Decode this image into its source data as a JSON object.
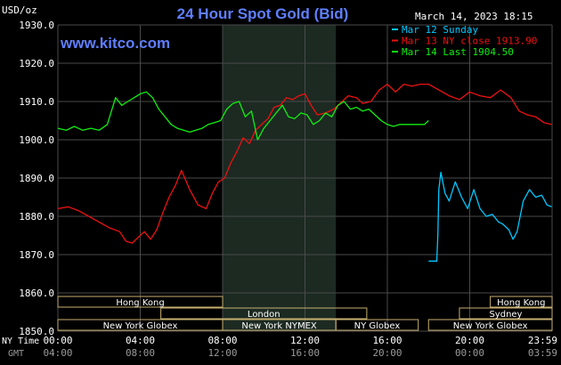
{
  "chart_data": {
    "type": "line",
    "title": "24 Hour Spot Gold (Bid)",
    "ylabel": "USD/oz",
    "site": "www.kitco.com",
    "timestamp": "March 14, 2023 18:15",
    "ylim": [
      1850,
      1930
    ],
    "y_ticks": [
      "1930.0",
      "1920.0",
      "1910.0",
      "1900.0",
      "1890.0",
      "1880.0",
      "1870.0",
      "1860.0",
      "1850.0"
    ],
    "x_ticks_ny": [
      "00:00",
      "04:00",
      "08:00",
      "12:00",
      "16:00",
      "20:00",
      "23:59"
    ],
    "x_ticks_gmt": [
      "04:00",
      "08:00",
      "12:00",
      "16:00",
      "20:00",
      "00:00",
      "03:59"
    ],
    "row_label_ny": "NY Time",
    "row_label_gmt": "GMT",
    "grid": true,
    "legend_position": "top-right",
    "colors": {
      "background": "#000000",
      "grid": "#4a4a4a",
      "title": "#5f7fff",
      "site": "#5f7fff",
      "highlight": "#1c2a22",
      "session_border": "#c8b070",
      "mar12": "#00c8ff",
      "mar13": "#ee1111",
      "mar14": "#11ee11"
    },
    "series": [
      {
        "name": "Mar 12 Sunday",
        "color": "#00c8ff",
        "x": [
          18.0,
          18.4,
          18.45,
          18.5,
          18.6,
          18.8,
          19.0,
          19.3,
          19.6,
          19.9,
          20.2,
          20.5,
          20.8,
          21.1,
          21.4,
          21.6,
          21.9,
          22.1,
          22.3,
          22.6,
          22.9,
          23.2,
          23.5,
          23.75,
          23.98
        ],
        "values": [
          1868.3,
          1868.3,
          1875,
          1887,
          1891.5,
          1886,
          1884,
          1889,
          1885,
          1882,
          1887,
          1882,
          1880,
          1880.5,
          1878.5,
          1878,
          1876.5,
          1874,
          1876,
          1884,
          1887,
          1885,
          1885.5,
          1883,
          1882.5
        ]
      },
      {
        "name": "Mar 13 NY close 1913.90",
        "color": "#ee1111",
        "x": [
          0.0,
          0.5,
          1.0,
          1.5,
          2.0,
          2.5,
          3.0,
          3.3,
          3.6,
          3.9,
          4.2,
          4.5,
          4.8,
          5.1,
          5.4,
          5.7,
          6.0,
          6.4,
          6.8,
          7.2,
          7.5,
          7.8,
          8.1,
          8.4,
          8.7,
          9.0,
          9.3,
          9.6,
          9.9,
          10.2,
          10.5,
          10.8,
          11.1,
          11.4,
          11.7,
          12.0,
          12.3,
          12.6,
          13.0,
          13.4,
          13.8,
          14.1,
          14.5,
          14.8,
          15.2,
          15.6,
          16.0,
          16.4,
          16.8,
          17.2,
          17.6,
          18.0,
          18.5,
          19.0,
          19.5,
          20.0,
          20.5,
          21.0,
          21.5,
          22.0,
          22.4,
          22.8,
          23.2,
          23.6,
          23.98
        ],
        "values": [
          1882,
          1882.5,
          1881.5,
          1880,
          1878.5,
          1877,
          1876,
          1873.5,
          1873,
          1874.5,
          1876,
          1874,
          1876.5,
          1881,
          1885,
          1888,
          1892,
          1887,
          1883,
          1882,
          1886,
          1889,
          1890,
          1894,
          1897,
          1900.5,
          1899,
          1902.5,
          1904,
          1905.5,
          1908.5,
          1909,
          1911,
          1910.5,
          1911.5,
          1912,
          1909,
          1906.5,
          1907,
          1908,
          1910,
          1911.5,
          1911,
          1909.5,
          1910,
          1913,
          1914.5,
          1912.5,
          1914.5,
          1914,
          1914.5,
          1914.5,
          1913,
          1911.5,
          1910.5,
          1912.5,
          1911.5,
          1911,
          1913,
          1911,
          1907.5,
          1906.5,
          1906,
          1904.5,
          1904
        ]
      },
      {
        "name": "Mar 14 Last 1904.50",
        "color": "#11ee11",
        "x": [
          0.0,
          0.4,
          0.8,
          1.2,
          1.6,
          2.0,
          2.4,
          2.8,
          3.1,
          3.4,
          3.7,
          4.0,
          4.3,
          4.6,
          4.9,
          5.2,
          5.5,
          5.8,
          6.1,
          6.4,
          6.7,
          7.0,
          7.3,
          7.6,
          7.9,
          8.2,
          8.5,
          8.8,
          9.1,
          9.4,
          9.7,
          10.0,
          10.3,
          10.6,
          10.9,
          11.2,
          11.5,
          11.8,
          12.1,
          12.4,
          12.7,
          13.0,
          13.3,
          13.6,
          13.9,
          14.2,
          14.5,
          14.8,
          15.1,
          15.4,
          15.7,
          16.0,
          16.3,
          16.6,
          16.9,
          17.2,
          17.5,
          17.8,
          18.0
        ],
        "values": [
          1903,
          1902.5,
          1903.5,
          1902.5,
          1903,
          1902.5,
          1904,
          1911,
          1909,
          1910,
          1911,
          1912,
          1912.5,
          1911,
          1908,
          1906,
          1904,
          1903,
          1902.5,
          1902,
          1902.5,
          1903,
          1904,
          1904.5,
          1905,
          1908,
          1909.5,
          1910,
          1906,
          1907.5,
          1900,
          1903,
          1905,
          1907,
          1909,
          1906,
          1905.5,
          1907,
          1906.5,
          1904,
          1905,
          1907,
          1906,
          1909,
          1910,
          1908,
          1908.5,
          1907.5,
          1908,
          1906.5,
          1905,
          1904,
          1903.5,
          1904,
          1904,
          1904,
          1904,
          1904,
          1905
        ]
      }
    ],
    "sessions": [
      {
        "name": "Hong Kong",
        "row": 0,
        "start": 0.0,
        "end": 8.0
      },
      {
        "name": "London",
        "row": 1,
        "start": 5.0,
        "end": 15.0
      },
      {
        "name": "New York Globex",
        "row": 2,
        "start": 0.0,
        "end": 8.0
      },
      {
        "name": "New York NYMEX",
        "row": 2,
        "start": 8.0,
        "end": 13.5
      },
      {
        "name": "NY Globex",
        "row": 2,
        "start": 13.5,
        "end": 17.5
      },
      {
        "name": "Hong Kong",
        "row": 0,
        "start": 21.0,
        "end": 24.0
      },
      {
        "name": "Sydney",
        "row": 1,
        "start": 19.5,
        "end": 24.0
      },
      {
        "name": "New York Globex",
        "row": 2,
        "start": 18.0,
        "end": 24.0
      }
    ],
    "highlight_hours": [
      8.0,
      13.5
    ]
  }
}
